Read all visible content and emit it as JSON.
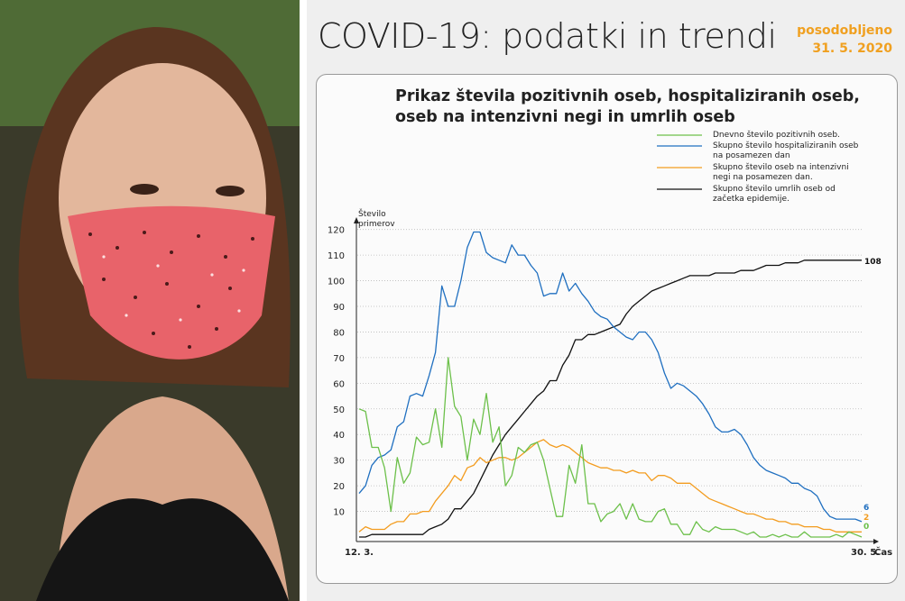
{
  "header": {
    "title": "COVID-19: podatki in trendi",
    "updated_label": "posodobljeno",
    "updated_date": "31. 5. 2020"
  },
  "chart_data": {
    "type": "line",
    "title": "Prikaz števila pozitivnih oseb, hospitaliziranih oseb, oseb na intenzivni negi in umrlih oseb",
    "y_label": "Število primerov",
    "x_label": "Čas",
    "categories": [
      "12. 3.",
      null,
      null,
      null,
      null,
      null,
      null,
      null,
      null,
      null,
      null,
      null,
      null,
      null,
      null,
      null,
      null,
      null,
      null,
      null,
      null,
      null,
      null,
      null,
      null,
      null,
      null,
      null,
      null,
      null,
      null,
      null,
      null,
      null,
      null,
      null,
      null,
      null,
      null,
      null,
      null,
      null,
      null,
      null,
      null,
      null,
      null,
      null,
      null,
      null,
      null,
      null,
      null,
      null,
      null,
      null,
      null,
      null,
      null,
      null,
      null,
      null,
      null,
      null,
      null,
      null,
      null,
      null,
      null,
      null,
      null,
      null,
      null,
      null,
      null,
      null,
      null,
      null,
      null,
      "30. 5."
    ],
    "ylim": [
      0,
      122
    ],
    "yticks": [
      10,
      20,
      30,
      40,
      50,
      60,
      70,
      80,
      90,
      100,
      110,
      120
    ],
    "grid": true,
    "series": [
      {
        "name": "Dnevno število pozitivnih oseb.",
        "color": "#6cc04a",
        "values": [
          50,
          49,
          35,
          35,
          27,
          10,
          31,
          21,
          25,
          39,
          36,
          37,
          50,
          35,
          70,
          51,
          47,
          30,
          46,
          40,
          56,
          37,
          43,
          20,
          24,
          35,
          33,
          36,
          37,
          30,
          19,
          8,
          8,
          28,
          21,
          36,
          13,
          13,
          6,
          9,
          10,
          13,
          7,
          13,
          7,
          6,
          6,
          10,
          11,
          5,
          5,
          1,
          1,
          6,
          3,
          2,
          4,
          3,
          3,
          3,
          2,
          1,
          2,
          0,
          0,
          1,
          0,
          1,
          0,
          0,
          2,
          0,
          0,
          0,
          0,
          1,
          0,
          2,
          1,
          0
        ]
      },
      {
        "name": "Skupno število hospitaliziranih oseb na posamezen dan",
        "color": "#1f6fc0",
        "values": [
          17,
          20,
          28,
          31,
          32,
          34,
          43,
          45,
          55,
          56,
          55,
          63,
          72,
          98,
          90,
          90,
          100,
          113,
          119,
          119,
          111,
          109,
          108,
          107,
          114,
          110,
          110,
          106,
          103,
          94,
          95,
          95,
          103,
          96,
          99,
          95,
          92,
          88,
          86,
          85,
          82,
          80,
          78,
          77,
          80,
          80,
          77,
          72,
          64,
          58,
          60,
          59,
          57,
          55,
          52,
          48,
          43,
          41,
          41,
          42,
          40,
          36,
          31,
          28,
          26,
          25,
          24,
          23,
          21,
          21,
          19,
          18,
          16,
          11,
          8,
          7,
          7,
          7,
          7,
          6
        ]
      },
      {
        "name": "Skupno število oseb na intenzivni negi na posamezen dan.",
        "color": "#f39c1f",
        "values": [
          2,
          4,
          3,
          3,
          3,
          5,
          6,
          6,
          9,
          9,
          10,
          10,
          14,
          17,
          20,
          24,
          22,
          27,
          28,
          31,
          29,
          30,
          31,
          31,
          30,
          31,
          33,
          35,
          37,
          38,
          36,
          35,
          36,
          35,
          33,
          31,
          29,
          28,
          27,
          27,
          26,
          26,
          25,
          26,
          25,
          25,
          22,
          24,
          24,
          23,
          21,
          21,
          21,
          19,
          17,
          15,
          14,
          13,
          12,
          11,
          10,
          9,
          9,
          8,
          7,
          7,
          6,
          6,
          5,
          5,
          4,
          4,
          4,
          3,
          3,
          2,
          2,
          2,
          2,
          2
        ]
      },
      {
        "name": "Skupno število umrlih oseb od začetka epidemije.",
        "color": "#111111",
        "values": [
          0,
          0,
          1,
          1,
          1,
          1,
          1,
          1,
          1,
          1,
          1,
          3,
          4,
          5,
          7,
          11,
          11,
          14,
          17,
          22,
          27,
          32,
          36,
          40,
          43,
          46,
          49,
          52,
          55,
          57,
          61,
          61,
          67,
          71,
          77,
          77,
          79,
          79,
          80,
          81,
          82,
          83,
          87,
          90,
          92,
          94,
          96,
          97,
          98,
          99,
          100,
          101,
          102,
          102,
          102,
          102,
          103,
          103,
          103,
          103,
          104,
          104,
          104,
          105,
          106,
          106,
          106,
          107,
          107,
          107,
          108,
          108,
          108,
          108,
          108,
          108,
          108,
          108,
          108,
          108
        ]
      }
    ]
  }
}
